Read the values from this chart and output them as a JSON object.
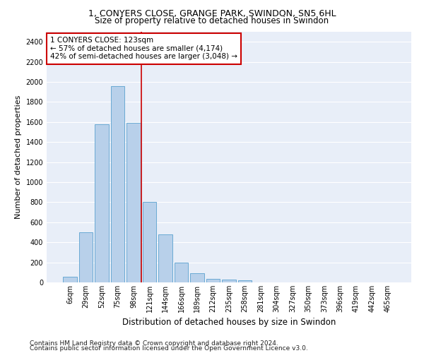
{
  "title1": "1, CONYERS CLOSE, GRANGE PARK, SWINDON, SN5 6HL",
  "title2": "Size of property relative to detached houses in Swindon",
  "xlabel": "Distribution of detached houses by size in Swindon",
  "ylabel": "Number of detached properties",
  "categories": [
    "6sqm",
    "29sqm",
    "52sqm",
    "75sqm",
    "98sqm",
    "121sqm",
    "144sqm",
    "166sqm",
    "189sqm",
    "212sqm",
    "235sqm",
    "258sqm",
    "281sqm",
    "304sqm",
    "327sqm",
    "350sqm",
    "373sqm",
    "396sqm",
    "419sqm",
    "442sqm",
    "465sqm"
  ],
  "values": [
    55,
    500,
    1580,
    1960,
    1590,
    800,
    480,
    195,
    90,
    35,
    25,
    20,
    0,
    0,
    0,
    0,
    0,
    0,
    0,
    0,
    0
  ],
  "bar_color": "#b8d0ea",
  "bar_edge_color": "#6aaad4",
  "vline_x_index": 5,
  "vline_color": "#cc0000",
  "annotation_text": "1 CONYERS CLOSE: 123sqm\n← 57% of detached houses are smaller (4,174)\n42% of semi-detached houses are larger (3,048) →",
  "annotation_box_color": "#ffffff",
  "annotation_box_edge": "#cc0000",
  "ylim": [
    0,
    2500
  ],
  "yticks": [
    0,
    200,
    400,
    600,
    800,
    1000,
    1200,
    1400,
    1600,
    1800,
    2000,
    2200,
    2400
  ],
  "footnote1": "Contains HM Land Registry data © Crown copyright and database right 2024.",
  "footnote2": "Contains public sector information licensed under the Open Government Licence v3.0.",
  "bg_color": "#e8eef8",
  "grid_color": "#ffffff",
  "title1_fontsize": 9,
  "title2_fontsize": 8.5,
  "xlabel_fontsize": 8.5,
  "ylabel_fontsize": 8,
  "tick_fontsize": 7,
  "annotation_fontsize": 7.5,
  "footnote_fontsize": 6.5
}
